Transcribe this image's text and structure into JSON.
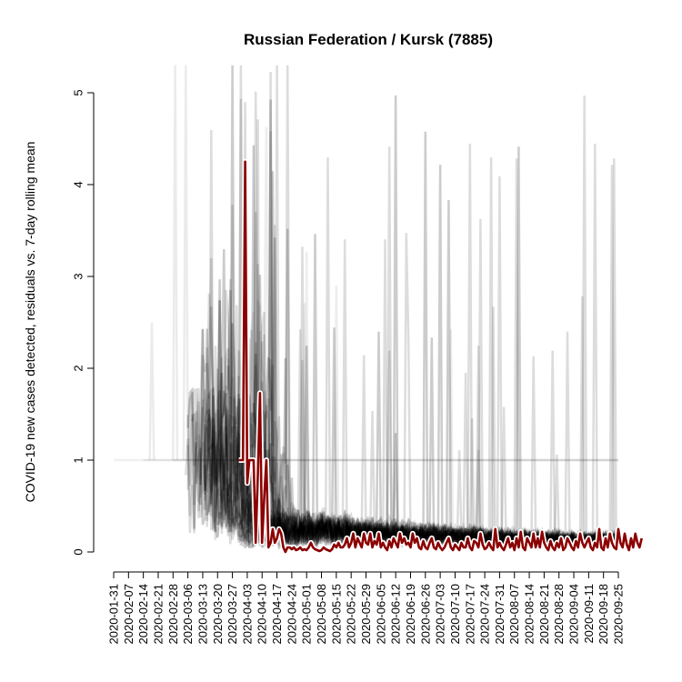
{
  "chart_data": {
    "type": "line",
    "title": "Russian Federation / Kursk (7885)",
    "xlabel": "",
    "ylabel": "COVID-19 new cases detected, residuals vs. 7-day rolling mean",
    "ylim": [
      0,
      5
    ],
    "y_ticks": [
      0,
      1,
      2,
      3,
      4,
      5
    ],
    "x_range": [
      "2020-01-31",
      "2020-09-25"
    ],
    "x_ticks": [
      "2020-01-31",
      "2020-02-07",
      "2020-02-14",
      "2020-02-21",
      "2020-02-28",
      "2020-03-06",
      "2020-03-13",
      "2020-03-20",
      "2020-03-27",
      "2020-04-03",
      "2020-04-10",
      "2020-04-17",
      "2020-04-24",
      "2020-05-01",
      "2020-05-08",
      "2020-05-15",
      "2020-05-22",
      "2020-05-29",
      "2020-06-05",
      "2020-06-12",
      "2020-06-19",
      "2020-06-26",
      "2020-07-03",
      "2020-07-10",
      "2020-07-17",
      "2020-07-24",
      "2020-07-31",
      "2020-08-07",
      "2020-08-14",
      "2020-08-21",
      "2020-08-28",
      "2020-09-04",
      "2020-09-11",
      "2020-09-18",
      "2020-09-25"
    ],
    "grid": false,
    "colors": {
      "highlight": "#8b0000",
      "highlight_halo": "#ffffff",
      "background_series": "#000000"
    },
    "series": [
      {
        "start_date": "2020-03-30",
        "values": [
          1.0,
          1.0,
          1.0,
          4.25,
          0.75,
          1.0,
          1.0,
          1.0,
          0.1,
          0.85,
          1.73,
          0.1,
          0.6,
          1.0,
          0.05,
          0.1,
          0.25,
          0.1,
          0.15,
          0.25,
          0.2,
          0.05,
          0.0,
          0.05,
          0.05,
          0.03,
          0.05,
          0.02,
          0.03,
          0.05,
          0.02,
          0.03,
          0.02,
          0.05,
          0.1,
          0.05,
          0.03,
          0.02,
          0.01,
          0.02,
          0.05,
          0.03,
          0.02,
          0.01,
          0.03,
          0.08,
          0.05,
          0.1,
          0.05,
          0.05,
          0.08,
          0.15,
          0.05,
          0.1,
          0.2,
          0.05,
          0.15,
          0.1,
          0.05,
          0.2,
          0.1,
          0.08,
          0.2,
          0.05,
          0.12,
          0.08,
          0.2,
          0.05,
          0.1,
          0.05,
          0.02,
          0.12,
          0.05,
          0.15,
          0.1,
          0.05,
          0.2,
          0.1,
          0.15,
          0.08,
          0.1,
          0.05,
          0.2,
          0.1,
          0.15,
          0.05,
          0.03,
          0.12,
          0.05,
          0.03,
          0.1,
          0.15,
          0.05,
          0.03,
          0.1,
          0.05,
          0.02,
          0.05,
          0.1,
          0.15,
          0.05,
          0.02,
          0.08,
          0.05,
          0.02,
          0.1,
          0.05,
          0.05,
          0.15,
          0.05,
          0.02,
          0.12,
          0.1,
          0.05,
          0.2,
          0.08,
          0.03,
          0.05,
          0.1,
          0.05,
          0.02,
          0.25,
          0.05,
          0.1,
          0.05,
          0.02,
          0.08,
          0.15,
          0.05,
          0.1,
          0.02,
          0.15,
          0.05,
          0.22,
          0.05,
          0.02,
          0.15,
          0.1,
          0.05,
          0.2,
          0.05,
          0.15,
          0.05,
          0.22,
          0.1,
          0.05,
          0.02,
          0.12,
          0.05,
          0.02,
          0.1,
          0.05,
          0.15,
          0.02,
          0.05,
          0.15,
          0.1,
          0.05,
          0.02,
          0.12,
          0.05,
          0.2,
          0.1,
          0.05,
          0.1,
          0.15,
          0.05,
          0.02,
          0.1,
          0.05,
          0.25,
          0.05,
          0.02,
          0.15,
          0.05,
          0.2,
          0.1,
          0.05,
          0.03,
          0.25,
          0.1,
          0.05,
          0.2,
          0.08,
          0.02,
          0.15,
          0.05,
          0.2,
          0.1,
          0.05,
          0.15
        ]
      }
    ]
  }
}
